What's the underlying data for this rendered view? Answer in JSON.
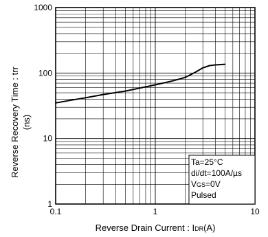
{
  "chart_data": {
    "type": "line",
    "x_scale": "log",
    "y_scale": "log",
    "xlim": [
      0.1,
      10
    ],
    "ylim": [
      1,
      1000
    ],
    "x_ticks": [
      "0.1",
      "1",
      "10"
    ],
    "y_ticks": [
      "1000",
      "100",
      "10",
      "1"
    ],
    "grid": true,
    "xlabel_main": "Reverse Drain Current : I",
    "xlabel_sub": "DR",
    "xlabel_tail": "(A)",
    "ylabel_line1": "Reverse Recovery Time : trr",
    "ylabel_line2": "(ns)",
    "series": [
      {
        "x": [
          0.1,
          0.15,
          0.2,
          0.3,
          0.5,
          0.7,
          1.0,
          1.5,
          2.0,
          2.5,
          3.0,
          3.5,
          4.0,
          5.0
        ],
        "y": [
          35,
          39,
          42,
          47,
          53,
          59,
          66,
          76,
          86,
          102,
          120,
          130,
          133,
          136
        ]
      }
    ],
    "annotation": {
      "line1": "Ta=25°C",
      "line2": "di/dt=100A/µs",
      "line3_main": "V",
      "line3_sub": "GS",
      "line3_tail": "=0V",
      "line4": "Pulsed"
    }
  }
}
